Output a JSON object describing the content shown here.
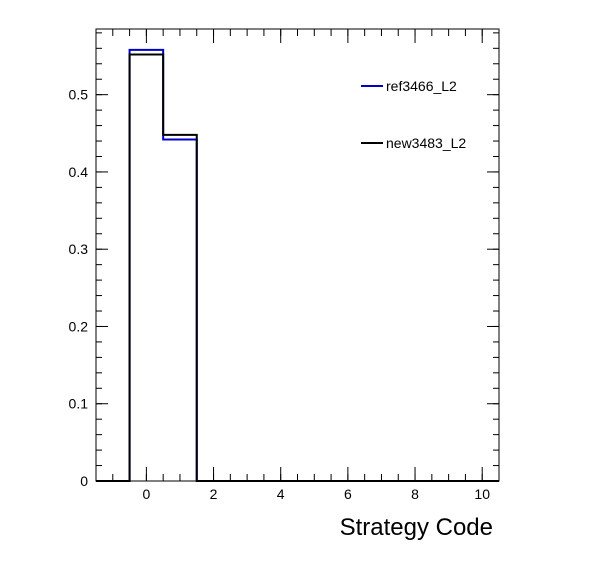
{
  "chart_data": {
    "type": "histogram",
    "title": "",
    "xlabel": "Strategy Code",
    "ylabel": "",
    "xlim": [
      -1.5,
      10.5
    ],
    "ylim": [
      0,
      0.585
    ],
    "x_ticks": [
      0,
      2,
      4,
      6,
      8,
      10
    ],
    "x_tick_labels": [
      "0",
      "2",
      "4",
      "6",
      "8",
      "10"
    ],
    "y_ticks": [
      0,
      0.1,
      0.2,
      0.3,
      0.4,
      0.5
    ],
    "y_tick_labels": [
      "0",
      "0.1",
      "0.2",
      "0.3",
      "0.4",
      "0.5"
    ],
    "bin_edges": [
      -1.5,
      -0.5,
      0.5,
      1.5,
      2.5,
      3.5,
      4.5,
      5.5,
      6.5,
      7.5,
      8.5,
      9.5,
      10.5
    ],
    "legend_position": "top-right",
    "grid": false,
    "series": [
      {
        "name": "ref3466_L2",
        "color": "#0000cc",
        "values": [
          0,
          0.558,
          0.442,
          0,
          0,
          0,
          0,
          0,
          0,
          0,
          0,
          0
        ]
      },
      {
        "name": "new3483_L2",
        "color": "#000000",
        "values": [
          0,
          0.552,
          0.448,
          0,
          0,
          0,
          0,
          0,
          0,
          0,
          0,
          0
        ]
      }
    ]
  }
}
